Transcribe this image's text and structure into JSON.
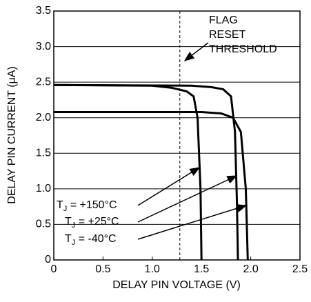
{
  "chart_data": {
    "type": "line",
    "xlabel": "DELAY PIN VOLTAGE (V)",
    "ylabel": "DELAY PIN CURRENT (μA)",
    "xlim": [
      0,
      2.5
    ],
    "ylim": [
      0,
      3.5
    ],
    "xticks": [
      0,
      0.5,
      {
        "value": 1,
        "label": "1.0"
      },
      1.5,
      {
        "value": 2,
        "label": "2.0"
      },
      2.5
    ],
    "yticks": [
      0,
      0.5,
      {
        "value": 1,
        "label": "1.0"
      },
      1.5,
      {
        "value": 2,
        "label": "2.0"
      },
      2.5,
      {
        "value": 3,
        "label": "3.0"
      },
      3.5
    ],
    "grid": true,
    "threshold_x": 1.28,
    "annotation": [
      "FLAG",
      "RESET",
      "THRESHOLD"
    ],
    "series": [
      {
        "label": {
          "base": "T",
          "sub": "J",
          "rest": " = +150°C"
        },
        "color": "#000",
        "x": [
          0,
          1.0,
          1.2,
          1.35,
          1.42,
          1.46,
          1.49,
          1.5
        ],
        "values": [
          2.46,
          2.45,
          2.42,
          2.37,
          2.3,
          2.0,
          1.0,
          0
        ]
      },
      {
        "label": {
          "base": "T",
          "sub": "J",
          "rest": " = +25°C"
        },
        "color": "#000",
        "x": [
          0,
          1.4,
          1.6,
          1.72,
          1.8,
          1.84,
          1.86,
          1.87
        ],
        "values": [
          2.46,
          2.45,
          2.43,
          2.4,
          2.3,
          1.8,
          0.8,
          0
        ]
      },
      {
        "label": {
          "base": "T",
          "sub": "J",
          "rest": " = -40°C"
        },
        "color": "#000",
        "x": [
          0,
          1.5,
          1.7,
          1.82,
          1.9,
          1.95,
          1.97
        ],
        "values": [
          2.08,
          2.08,
          2.06,
          2.0,
          1.8,
          1.0,
          0
        ]
      }
    ]
  }
}
